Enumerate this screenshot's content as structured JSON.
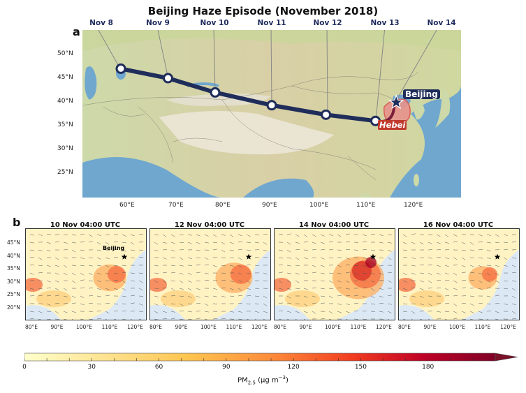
{
  "title": "Beijing Haze Episode (November 2018)",
  "panel_a": {
    "letter": "a",
    "dates": [
      "Nov 8",
      "Nov 9",
      "Nov 10",
      "Nov 11",
      "Nov 12",
      "Nov 13",
      "Nov 14"
    ],
    "lat_ticks": [
      "50°N",
      "45°N",
      "40°N",
      "35°N",
      "30°N",
      "25°N"
    ],
    "lon_ticks": [
      "60°E",
      "70°E",
      "80°E",
      "90°E",
      "100°E",
      "110°E",
      "120°E"
    ],
    "beijing_label": "Beijing",
    "hebei_label": "Hebei",
    "trajectory": [
      {
        "lon": 58,
        "lat": 47
      },
      {
        "lon": 68,
        "lat": 45
      },
      {
        "lon": 78,
        "lat": 42
      },
      {
        "lon": 90,
        "lat": 39.3
      },
      {
        "lon": 101.5,
        "lat": 37.3
      },
      {
        "lon": 112,
        "lat": 36
      },
      {
        "lon": 116.4,
        "lat": 39.9
      }
    ],
    "colors": {
      "track": "#1f2d5a",
      "hebei": "#d9534f",
      "land": "#d8d2a8",
      "sea": "#6fa7cf"
    }
  },
  "panel_b": {
    "letter": "b",
    "beijing_label": "Beijing",
    "maps": [
      {
        "title": "10 Nov 04:00 UTC",
        "intensity": 0.45
      },
      {
        "title": "12 Nov 04:00 UTC",
        "intensity": 0.55
      },
      {
        "title": "14 Nov 04:00 UTC",
        "intensity": 0.9
      },
      {
        "title": "16 Nov 04:00 UTC",
        "intensity": 0.35
      }
    ],
    "lat_ticks": [
      "45°N",
      "40°N",
      "35°N",
      "30°N",
      "25°N",
      "20°N"
    ],
    "lon_ticks": [
      "80°E",
      "90°E",
      "100°E",
      "110°E",
      "120°E"
    ]
  },
  "colorbar": {
    "ticks": [
      "0",
      "30",
      "60",
      "90",
      "120",
      "150",
      "180"
    ],
    "range": [
      0,
      210
    ],
    "label_main": "PM",
    "label_sub": "2.5",
    "label_unit": " (μg m",
    "label_exp": "−3",
    "label_end": ")",
    "colors": [
      "#ffffcc",
      "#fee391",
      "#fec44f",
      "#fd8d3c",
      "#f03b20",
      "#bd0026",
      "#800026"
    ]
  }
}
